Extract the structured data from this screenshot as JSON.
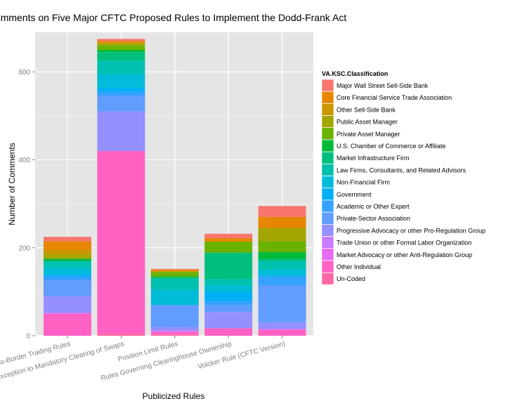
{
  "chart_data": {
    "type": "bar",
    "stacked": true,
    "title": "Comments on Five Major CFTC Proposed Rules to Implement the Dodd-Frank Act",
    "xlabel": "Publicized Rules",
    "ylabel": "Number of Comments",
    "ylim": [
      0,
      690
    ],
    "yticks": [
      0,
      200,
      400,
      600
    ],
    "grid": true,
    "legend_title": "VA.KSC.Classification",
    "legend_position": "right",
    "categories": [
      "Cross-Border Trading Rules",
      "End-User Exception to Mandatory Clearing of Swaps",
      "Position Limit Rules",
      "Rules Governing Clearinghouse Ownership",
      "Volcker Rule (CFTC Version)"
    ],
    "series": [
      {
        "name": "Major Wall Street Sell-Side Bank",
        "color": "#F8766D",
        "values": [
          10,
          5,
          2,
          10,
          25
        ]
      },
      {
        "name": "Core Financial Service Trade Association",
        "color": "#E58700",
        "values": [
          20,
          3,
          3,
          8,
          25
        ]
      },
      {
        "name": "Other Sell-Side Bank",
        "color": "#C99800",
        "values": [
          10,
          2,
          2,
          0,
          0
        ]
      },
      {
        "name": "Public Asset Manager",
        "color": "#A3A500",
        "values": [
          10,
          5,
          0,
          0,
          30
        ]
      },
      {
        "name": "Private Asset Manager",
        "color": "#6BB100",
        "values": [
          0,
          10,
          10,
          25,
          25
        ]
      },
      {
        "name": "U.S. Chamber of Commerce or Affiliate",
        "color": "#00BA38",
        "values": [
          5,
          5,
          2,
          0,
          15
        ]
      },
      {
        "name": "Market Infrastructure Firm",
        "color": "#00BF7D",
        "values": [
          0,
          20,
          3,
          60,
          5
        ]
      },
      {
        "name": "Law Firms, Consultants, and Related Advisors",
        "color": "#00C0AF",
        "values": [
          15,
          30,
          25,
          15,
          20
        ]
      },
      {
        "name": "Non-Financial Firm",
        "color": "#00BCD8",
        "values": [
          15,
          30,
          35,
          15,
          15
        ]
      },
      {
        "name": "Government",
        "color": "#00B0F6",
        "values": [
          5,
          10,
          0,
          20,
          0
        ]
      },
      {
        "name": "Academic or Other Expert",
        "color": "#35A2FF",
        "values": [
          8,
          10,
          0,
          10,
          20
        ]
      },
      {
        "name": "Private-Sector Association",
        "color": "#619CFF",
        "values": [
          37,
          35,
          50,
          15,
          85
        ]
      },
      {
        "name": "Progressive Advocacy or other Pro-Regulation Group",
        "color": "#9590FF",
        "values": [
          38,
          90,
          8,
          37,
          14
        ]
      },
      {
        "name": "Trade Union or other Formal Labor Organization",
        "color": "#C77CFF",
        "values": [
          0,
          0,
          3,
          0,
          2
        ]
      },
      {
        "name": "Market Advocacy or other Anti-Regulation Group",
        "color": "#E76BF3",
        "values": [
          2,
          0,
          0,
          0,
          0
        ]
      },
      {
        "name": "Other Individual",
        "color": "#FF61C3",
        "values": [
          50,
          415,
          7,
          17,
          14
        ]
      },
      {
        "name": "Un-Coded",
        "color": "#FF67A4",
        "values": [
          0,
          5,
          2,
          0,
          0
        ]
      }
    ]
  }
}
